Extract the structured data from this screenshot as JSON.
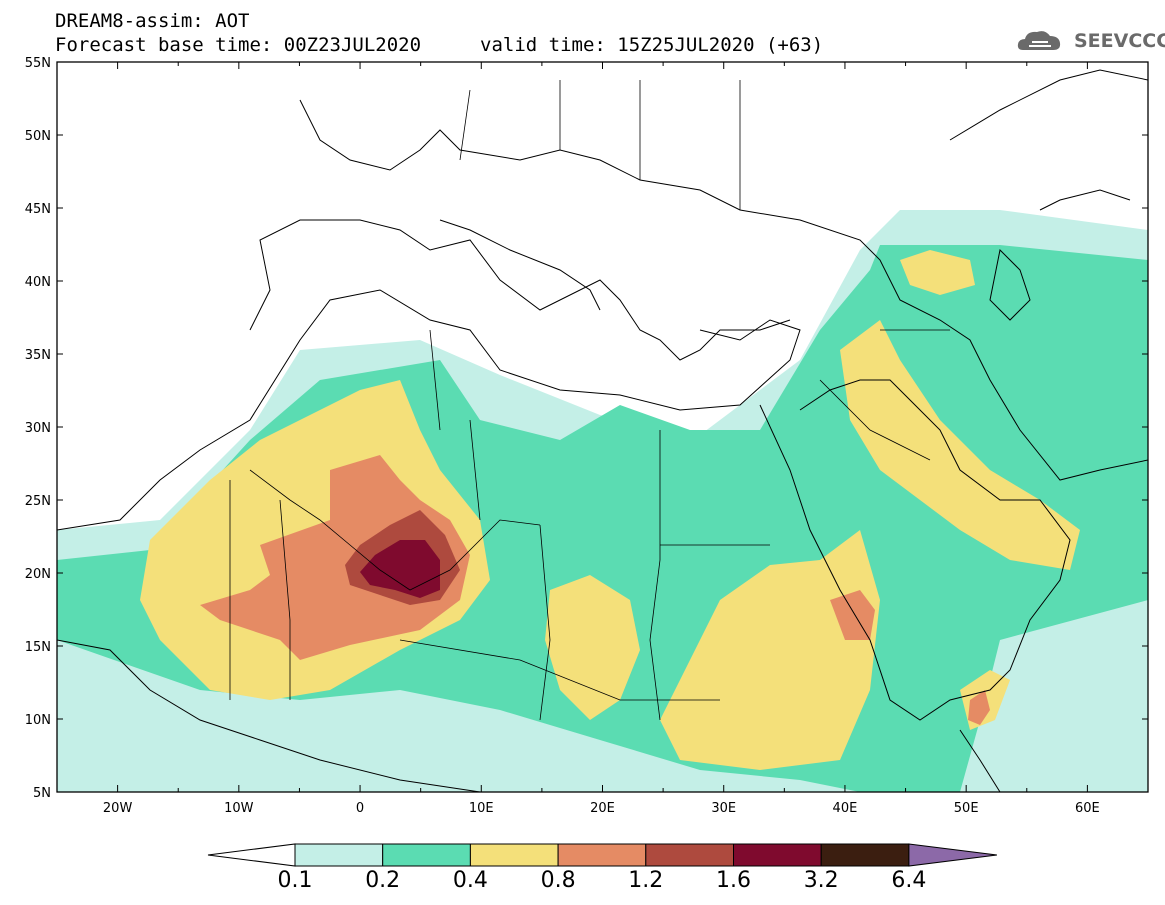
{
  "header": {
    "title_line1": "DREAM8-assim: AOT",
    "title_line2": "Forecast base time: 00Z23JUL2020",
    "valid_time": "valid time: 15Z25JUL2020 (+63)",
    "logo_text": "SEEVCCC"
  },
  "axes": {
    "lat_labels": [
      "55N",
      "50N",
      "45N",
      "40N",
      "35N",
      "30N",
      "25N",
      "20N",
      "15N",
      "10N",
      "5N"
    ],
    "lon_labels": [
      "20W",
      "10W",
      "0",
      "10E",
      "20E",
      "30E",
      "40E",
      "50E",
      "60E"
    ],
    "lat_range": [
      5,
      55
    ],
    "lon_range": [
      -25,
      65
    ]
  },
  "colorbar": {
    "labels": [
      "0.1",
      "0.2",
      "0.4",
      "0.8",
      "1.2",
      "1.6",
      "3.2",
      "6.4"
    ],
    "colors": [
      "#ffffff",
      "#c4efe7",
      "#5bdcb2",
      "#f4e07a",
      "#e58b64",
      "#ae4a3e",
      "#7f0a2e",
      "#3b1e10",
      "#8c69a8"
    ]
  }
}
